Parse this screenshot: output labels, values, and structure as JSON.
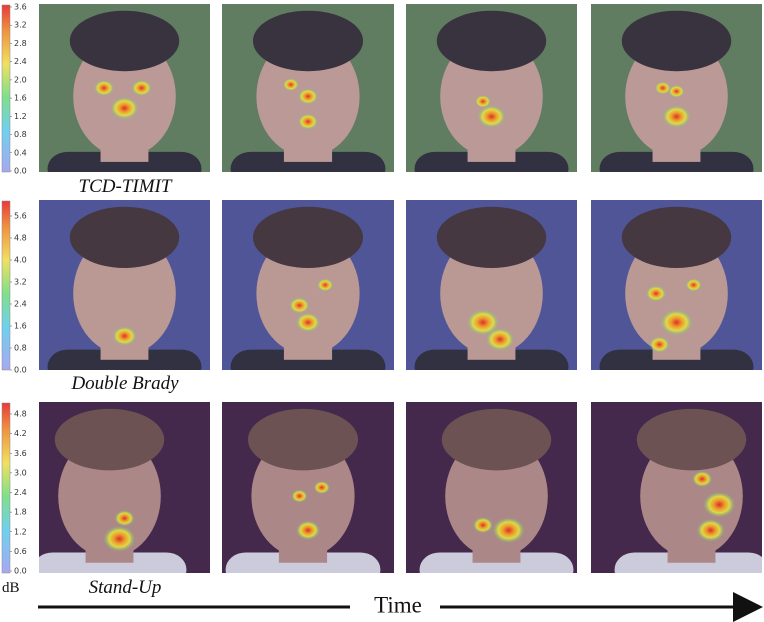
{
  "rows": [
    {
      "caption": "TCD-TIMIT",
      "colorbar_ticks": [
        "0.0",
        "0.4",
        "0.8",
        "1.2",
        "1.6",
        "2.0",
        "2.4",
        "2.8",
        "3.2",
        "3.6"
      ]
    },
    {
      "caption": "Double Brady",
      "colorbar_ticks": [
        "0.0",
        "0.8",
        "1.6",
        "2.4",
        "3.2",
        "4.0",
        "4.8",
        "5.6"
      ]
    },
    {
      "caption": "Stand-Up",
      "colorbar_ticks": [
        "0.0",
        "0.6",
        "1.2",
        "1.8",
        "2.4",
        "3.0",
        "3.6",
        "4.2",
        "4.8"
      ]
    }
  ],
  "unit": "dB",
  "axis_label": "Time"
}
